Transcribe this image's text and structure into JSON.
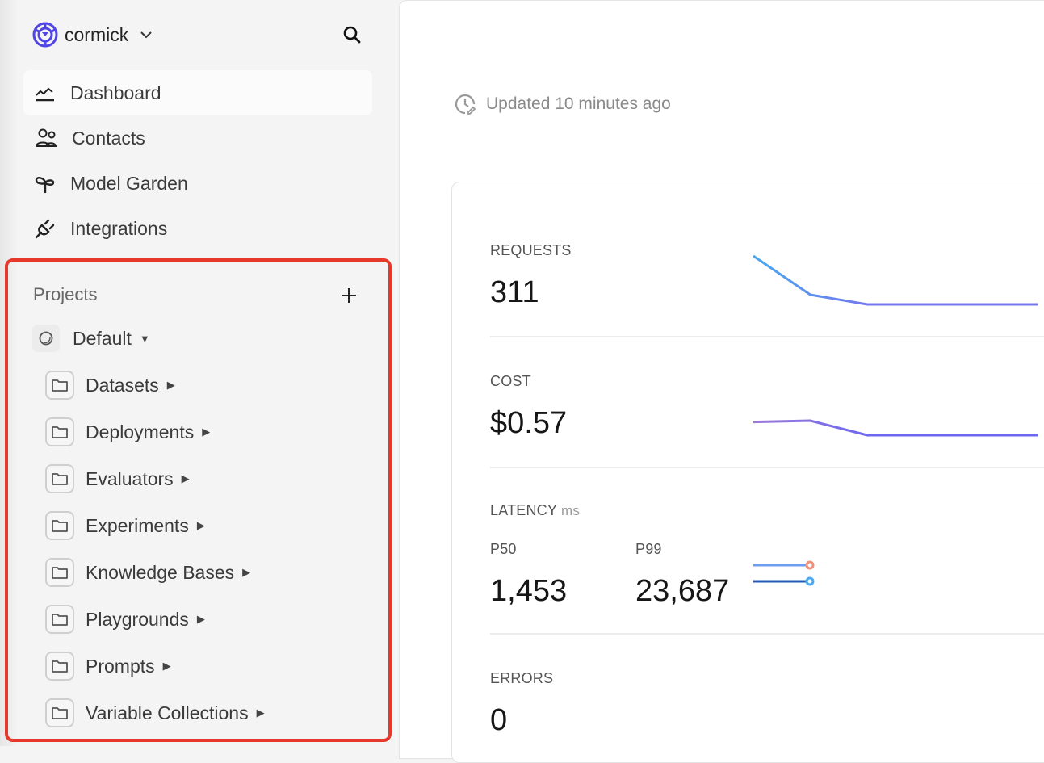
{
  "workspace": {
    "name": "cormick",
    "logo_color": "#5046e5"
  },
  "nav": [
    {
      "label": "Dashboard",
      "icon": "chart-line-icon",
      "active": true
    },
    {
      "label": "Contacts",
      "icon": "users-icon"
    },
    {
      "label": "Model Garden",
      "icon": "sprout-icon"
    },
    {
      "label": "Integrations",
      "icon": "plug-icon"
    }
  ],
  "projects": {
    "heading": "Projects",
    "default": {
      "label": "Default"
    },
    "items": [
      "Datasets",
      "Deployments",
      "Evaluators",
      "Experiments",
      "Knowledge Bases",
      "Playgrounds",
      "Prompts",
      "Variable Collections"
    ]
  },
  "updated": "Updated 10 minutes ago",
  "metrics": {
    "requests": {
      "label": "REQUESTS",
      "value": "311"
    },
    "cost": {
      "label": "COST",
      "value": "$0.57"
    },
    "latency": {
      "label": "LATENCY",
      "unit": "ms",
      "p50_label": "P50",
      "p50": "1,453",
      "p99_label": "P99",
      "p99": "23,687"
    },
    "errors": {
      "label": "ERRORS",
      "value": "0"
    }
  },
  "chart_data": [
    {
      "type": "line",
      "title": "Requests sparkline",
      "values": [
        100,
        60,
        50,
        50,
        50,
        50
      ]
    },
    {
      "type": "line",
      "title": "Cost sparkline",
      "values": [
        0.14,
        0.145,
        0.09,
        0.09,
        0.09,
        0.09
      ]
    },
    {
      "type": "line",
      "title": "Latency sparkline",
      "series": [
        {
          "name": "P50",
          "values": [
            1453,
            1453
          ],
          "color": "#6f9df0",
          "marker": "#f0907a"
        },
        {
          "name": "P99",
          "values": [
            23687,
            23687
          ],
          "color": "#2559b8",
          "marker": "#4aa8f0"
        }
      ]
    }
  ],
  "colors": {
    "highlight": "#e6382b",
    "accent": "#7070ee"
  }
}
